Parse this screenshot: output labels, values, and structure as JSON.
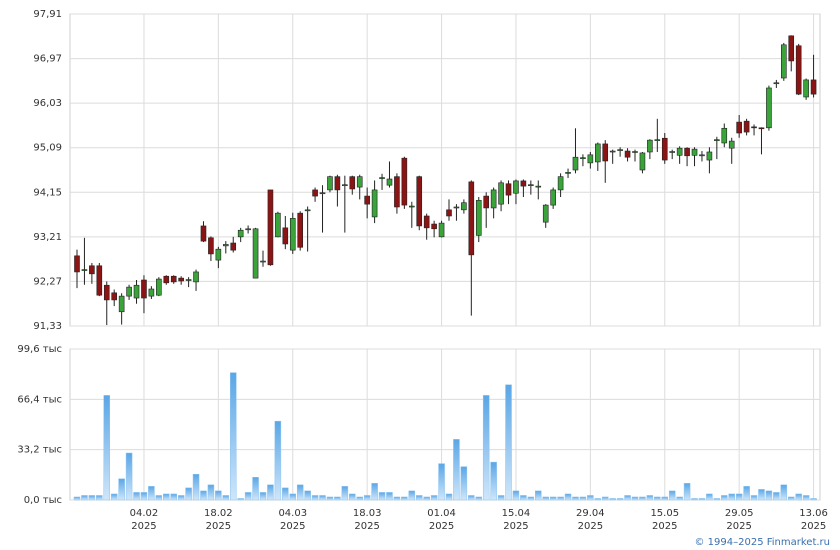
{
  "chart_data": [
    {
      "type": "candlestick",
      "open": [
        92.81,
        92.5,
        92.6,
        92.6,
        92.19,
        92.03,
        91.63,
        91.96,
        91.92,
        92.3,
        91.96,
        91.98,
        92.38,
        92.38,
        92.34,
        92.29,
        92.26,
        93.44,
        93.19,
        92.72,
        93.02,
        93.08,
        93.21,
        93.37,
        92.34,
        92.68,
        94.2,
        93.21,
        93.4,
        92.93,
        93.71,
        93.77,
        94.2,
        94.12,
        94.2,
        94.48,
        94.3,
        94.48,
        94.26,
        94.07,
        93.63,
        94.44,
        94.3,
        94.48,
        94.87,
        93.85,
        94.48,
        93.65,
        93.48,
        93.21,
        93.78,
        93.82,
        93.78,
        94.37,
        93.24,
        94.07,
        93.82,
        93.9,
        94.33,
        94.13,
        94.39,
        94.3,
        94.27,
        93.52,
        93.88,
        94.2,
        94.55,
        94.62,
        94.86,
        94.77,
        94.79,
        95.17,
        95.01,
        95.04,
        95.02,
        94.99,
        94.62,
        95.0,
        95.24,
        95.29,
        95.0,
        94.93,
        95.08,
        94.93,
        94.93,
        94.83,
        95.24,
        95.19,
        95.08,
        95.63,
        95.65,
        95.53,
        95.51,
        95.51,
        96.44,
        96.56,
        97.45,
        97.24,
        96.16,
        96.52
      ],
      "high": [
        92.94,
        93.19,
        92.66,
        92.66,
        92.27,
        92.1,
        92.02,
        92.2,
        92.3,
        92.4,
        92.17,
        92.36,
        92.4,
        92.4,
        92.38,
        92.36,
        92.52,
        93.54,
        93.22,
        93.0,
        93.12,
        93.21,
        93.4,
        93.45,
        93.4,
        92.92,
        94.2,
        93.74,
        93.65,
        93.72,
        93.75,
        93.85,
        94.25,
        94.3,
        94.5,
        94.52,
        94.5,
        94.5,
        94.52,
        94.25,
        94.4,
        94.54,
        94.8,
        94.55,
        94.9,
        93.95,
        94.5,
        93.7,
        93.55,
        93.55,
        94.0,
        93.9,
        94.0,
        94.4,
        94.05,
        94.15,
        94.25,
        94.4,
        94.4,
        94.42,
        94.42,
        94.4,
        94.4,
        93.9,
        94.25,
        94.55,
        94.65,
        95.5,
        94.95,
        95.0,
        95.2,
        95.25,
        95.05,
        95.1,
        95.08,
        95.05,
        95.0,
        95.27,
        95.7,
        95.4,
        95.05,
        95.12,
        95.1,
        95.1,
        95.02,
        95.1,
        95.32,
        95.6,
        95.3,
        95.78,
        95.7,
        95.58,
        95.52,
        96.4,
        96.52,
        97.3,
        97.46,
        97.28,
        96.55,
        97.05
      ],
      "low": [
        92.13,
        92.2,
        92.22,
        91.96,
        91.35,
        91.75,
        91.36,
        91.88,
        91.8,
        91.6,
        91.9,
        91.96,
        92.2,
        92.22,
        92.2,
        92.15,
        92.07,
        93.1,
        92.7,
        92.55,
        92.86,
        92.88,
        93.1,
        93.28,
        92.34,
        92.58,
        92.6,
        93.2,
        92.95,
        92.85,
        92.92,
        92.9,
        93.95,
        93.3,
        94.15,
        93.85,
        93.3,
        94.1,
        94.0,
        93.6,
        93.5,
        94.2,
        94.25,
        93.7,
        93.8,
        93.4,
        93.35,
        93.15,
        93.2,
        93.2,
        93.55,
        93.55,
        93.7,
        91.55,
        93.1,
        93.4,
        93.6,
        93.75,
        93.9,
        93.9,
        94.05,
        94.1,
        94.0,
        93.4,
        93.8,
        94.05,
        94.45,
        94.55,
        94.7,
        94.65,
        94.6,
        94.35,
        94.75,
        94.9,
        94.8,
        94.8,
        94.55,
        94.85,
        95.0,
        94.75,
        94.85,
        94.75,
        94.7,
        94.7,
        94.8,
        94.55,
        94.85,
        95.1,
        94.75,
        95.3,
        95.35,
        95.35,
        94.95,
        95.45,
        96.35,
        96.5,
        96.7,
        96.2,
        96.1,
        96.15
      ],
      "close": [
        92.47,
        92.52,
        92.43,
        91.98,
        91.88,
        91.88,
        91.96,
        92.15,
        92.19,
        91.92,
        92.11,
        92.32,
        92.24,
        92.26,
        92.28,
        92.31,
        92.47,
        93.12,
        92.85,
        92.95,
        93.05,
        92.93,
        93.35,
        93.38,
        93.38,
        92.7,
        92.62,
        93.71,
        93.06,
        93.6,
        92.99,
        93.78,
        94.07,
        94.14,
        94.48,
        94.2,
        94.31,
        94.22,
        94.48,
        93.9,
        94.2,
        94.46,
        94.43,
        93.84,
        93.88,
        93.86,
        93.44,
        93.4,
        93.38,
        93.5,
        93.65,
        93.84,
        93.93,
        92.83,
        93.98,
        93.82,
        94.2,
        94.35,
        94.09,
        94.39,
        94.28,
        94.31,
        94.28,
        93.88,
        94.2,
        94.48,
        94.57,
        94.89,
        94.88,
        94.94,
        95.17,
        94.81,
        95.02,
        95.05,
        94.89,
        95.01,
        94.98,
        95.25,
        95.26,
        94.83,
        95.01,
        95.08,
        94.92,
        95.06,
        94.94,
        95.0,
        95.26,
        95.5,
        95.23,
        95.4,
        95.42,
        95.52,
        95.5,
        96.35,
        96.46,
        97.26,
        96.92,
        96.22,
        96.52,
        96.22
      ],
      "up_color": "#3aa33a",
      "down_color": "#8b1515",
      "ylim": [
        91.33,
        97.91
      ],
      "yticks": [
        {
          "value": 91.33,
          "label": "91,33"
        },
        {
          "value": 92.27,
          "label": "92,27"
        },
        {
          "value": 93.21,
          "label": "93,21"
        },
        {
          "value": 94.15,
          "label": "94,15"
        },
        {
          "value": 95.09,
          "label": "95,09"
        },
        {
          "value": 96.03,
          "label": "96,03"
        },
        {
          "value": 96.97,
          "label": "96,97"
        },
        {
          "value": 97.91,
          "label": "97,91"
        }
      ],
      "grid": true
    },
    {
      "type": "bar",
      "categories": [
        null,
        null,
        null,
        null,
        null,
        null,
        null,
        null,
        null,
        "04.02 2025",
        null,
        null,
        null,
        null,
        null,
        null,
        null,
        null,
        null,
        "18.02 2025",
        null,
        null,
        null,
        null,
        null,
        null,
        null,
        null,
        null,
        "04.03 2025",
        null,
        null,
        null,
        null,
        null,
        null,
        null,
        null,
        null,
        "18.03 2025",
        null,
        null,
        null,
        null,
        null,
        null,
        null,
        null,
        null,
        "01.04 2025",
        null,
        null,
        null,
        null,
        null,
        null,
        null,
        null,
        null,
        "15.04 2025",
        null,
        null,
        null,
        null,
        null,
        null,
        null,
        null,
        null,
        "29.04 2025",
        null,
        null,
        null,
        null,
        null,
        null,
        null,
        null,
        null,
        "15.05 2025",
        null,
        null,
        null,
        null,
        null,
        null,
        null,
        null,
        null,
        "29.05 2025",
        null,
        null,
        null,
        null,
        null,
        null,
        null,
        null,
        null,
        "13.06 2025"
      ],
      "values": [
        2,
        3,
        3,
        3,
        69,
        4,
        14,
        31,
        5,
        5,
        9,
        3,
        4,
        4,
        3,
        8,
        17,
        6,
        10,
        6,
        3,
        84,
        1,
        5,
        15,
        5,
        10,
        52,
        8,
        4,
        10,
        6,
        3,
        3,
        2,
        2,
        9,
        4,
        2,
        3,
        11,
        5,
        5,
        2,
        2,
        6,
        3,
        2,
        3,
        24,
        4,
        40,
        22,
        3,
        2,
        69,
        25,
        3,
        76,
        6,
        3,
        2,
        6,
        2,
        2,
        2,
        4,
        2,
        2,
        3,
        1,
        2,
        1,
        1,
        3,
        2,
        2,
        3,
        2,
        2,
        6,
        2,
        11,
        1,
        1,
        4,
        1,
        3,
        4,
        4,
        9,
        3,
        7,
        6,
        5,
        10,
        2,
        4,
        3,
        1
      ],
      "color": "#8cc4f0",
      "ylim": [
        0,
        99.6
      ],
      "yticks": [
        {
          "value": 0,
          "label": "0,0 тыс"
        },
        {
          "value": 33.2,
          "label": "33,2 тыс"
        },
        {
          "value": 66.4,
          "label": "66,4 тыс"
        },
        {
          "value": 99.6,
          "label": "99,6 тыс"
        }
      ],
      "grid": true
    }
  ],
  "footer": "© 1994–2025 Finmarket.ru"
}
